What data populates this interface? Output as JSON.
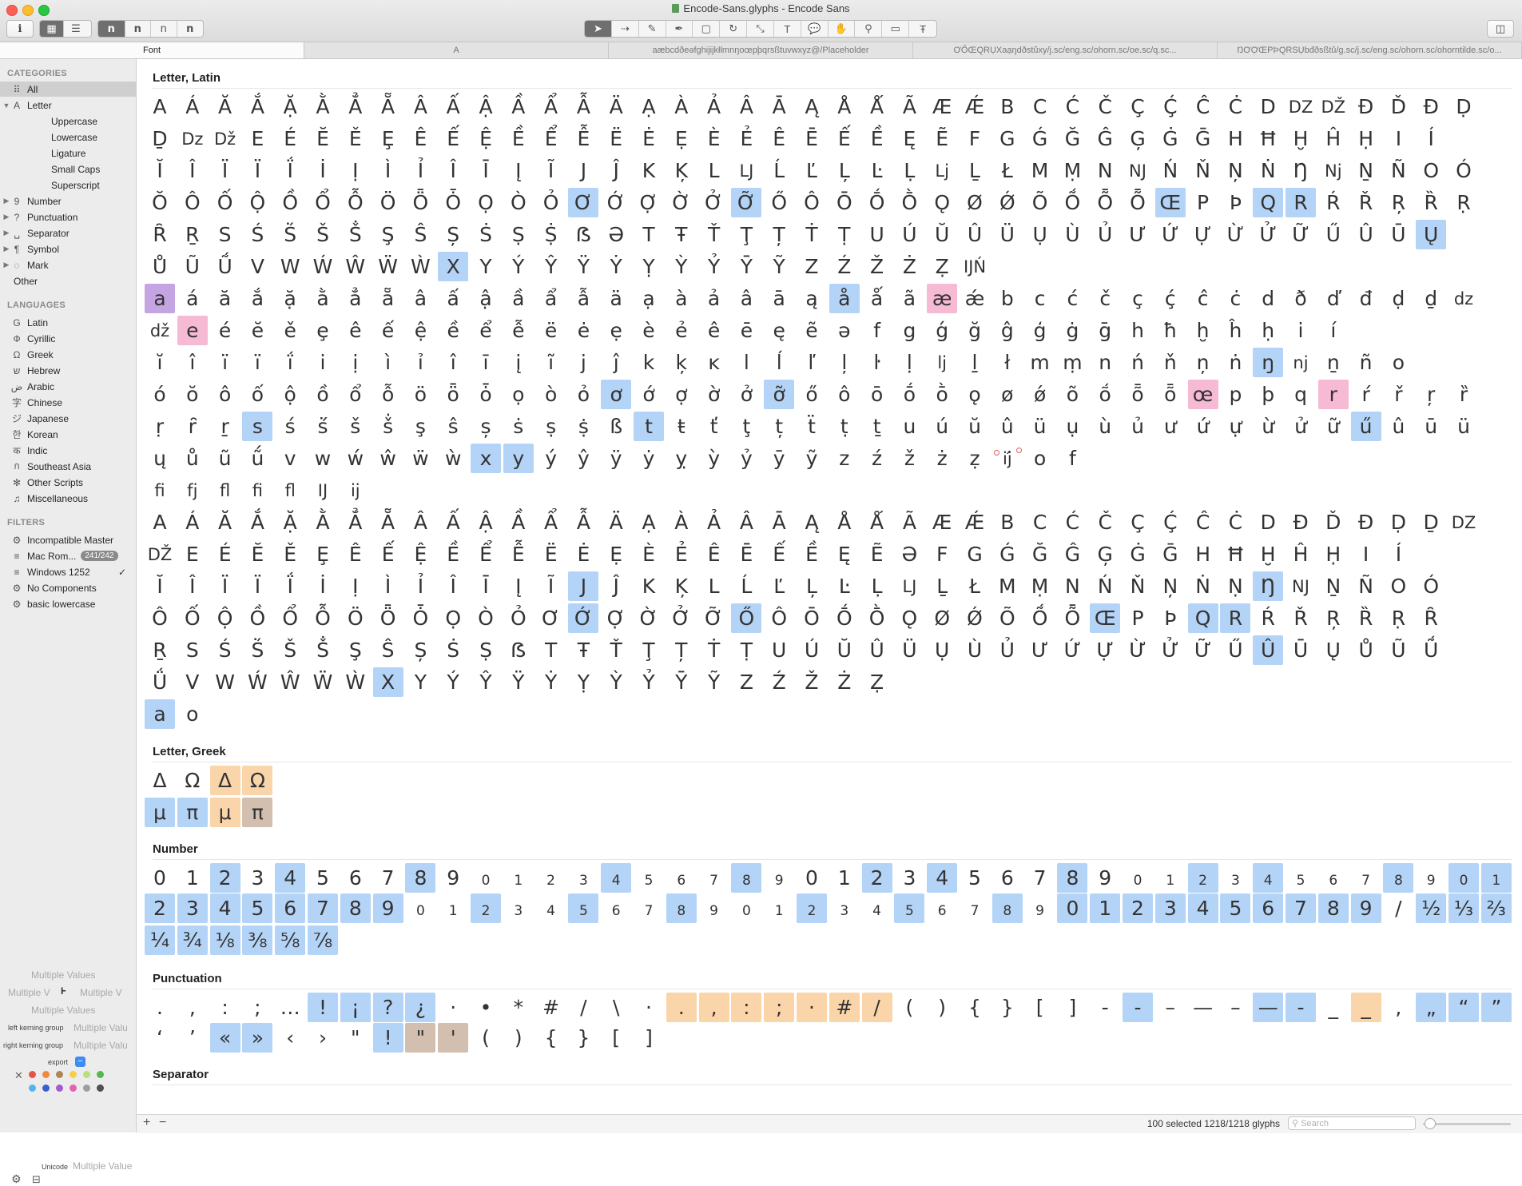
{
  "window": {
    "title": "Encode-Sans.glyphs - Encode Sans"
  },
  "toolbar": {
    "info_icon": "info-icon",
    "view_buttons": [
      "grid-view-icon",
      "list-view-icon"
    ],
    "master_buttons": [
      "n",
      "n",
      "n",
      "n"
    ],
    "tools": [
      "select-tool-icon",
      "select-all-layers-icon",
      "draw-tool-icon",
      "pen-tool-icon",
      "rectangle-tool-icon",
      "rotate-tool-icon",
      "scale-tool-icon",
      "text-tool-icon",
      "annotation-tool-icon",
      "hand-tool-icon",
      "zoom-tool-icon",
      "measurement-tool-icon",
      "text-preview-icon"
    ],
    "sidebar_toggle_icon": "sidebar-toggle-icon"
  },
  "tabs": [
    {
      "label": "Font"
    },
    {
      "label": "A"
    },
    {
      "label": "aæbcdðeəfghijĳkłlmnŋoœpþqrsßtuvwxyz@/Placeholder"
    },
    {
      "label": "ƠŐŒQRỤXaạŋdðstŭxy/j.sc/eng.sc/ohorn.sc/oe.sc/q.sc..."
    },
    {
      "label": "ŊƠỢŒPÞQRSỤbđðsßtŭ/g.sc/j.sc/eng.sc/ohorn.sc/ohorntilde.sc/o..."
    }
  ],
  "sidebar": {
    "categories_header": "CATEGORIES",
    "categories": [
      {
        "label": "All",
        "icon": "grid-icon",
        "glyph": "⠿",
        "selected": true,
        "tri": "",
        "indent": 0
      },
      {
        "label": "Letter",
        "icon": "letter-icon",
        "glyph": "A",
        "tri": "▼",
        "indent": 0
      },
      {
        "label": "Uppercase",
        "indent": 1
      },
      {
        "label": "Lowercase",
        "indent": 1
      },
      {
        "label": "Ligature",
        "indent": 1
      },
      {
        "label": "Small Caps",
        "indent": 1
      },
      {
        "label": "Superscript",
        "indent": 1
      },
      {
        "label": "Number",
        "icon": "number-icon",
        "glyph": "9",
        "tri": "▶",
        "indent": 0
      },
      {
        "label": "Punctuation",
        "icon": "punctuation-icon",
        "glyph": "?",
        "tri": "▶",
        "indent": 0
      },
      {
        "label": "Separator",
        "icon": "separator-icon",
        "glyph": "␣",
        "tri": "▶",
        "indent": 0
      },
      {
        "label": "Symbol",
        "icon": "symbol-icon",
        "glyph": "¶",
        "tri": "▶",
        "indent": 0
      },
      {
        "label": "Mark",
        "icon": "mark-icon",
        "glyph": "◌",
        "tri": "▶",
        "indent": 0
      },
      {
        "label": "Other",
        "indent": -1
      }
    ],
    "languages_header": "LANGUAGES",
    "languages": [
      {
        "label": "Latin",
        "icon": "latin-icon",
        "glyph": "G"
      },
      {
        "label": "Cyrillic",
        "icon": "cyrillic-icon",
        "glyph": "Ф"
      },
      {
        "label": "Greek",
        "icon": "greek-icon",
        "glyph": "Ω"
      },
      {
        "label": "Hebrew",
        "icon": "hebrew-icon",
        "glyph": "ש"
      },
      {
        "label": "Arabic",
        "icon": "arabic-icon",
        "glyph": "ض"
      },
      {
        "label": "Chinese",
        "icon": "chinese-icon",
        "glyph": "字"
      },
      {
        "label": "Japanese",
        "icon": "japanese-icon",
        "glyph": "ジ"
      },
      {
        "label": "Korean",
        "icon": "korean-icon",
        "glyph": "한"
      },
      {
        "label": "Indic",
        "icon": "indic-icon",
        "glyph": "क"
      },
      {
        "label": "Southeast Asia",
        "icon": "southeast-asia-icon",
        "glyph": "ก"
      },
      {
        "label": "Other Scripts",
        "icon": "other-scripts-icon",
        "glyph": "✻"
      },
      {
        "label": "Miscellaneous",
        "icon": "music-note-icon",
        "glyph": "♫"
      }
    ],
    "filters_header": "FILTERS",
    "filters": [
      {
        "label": "Incompatible Master",
        "icon": "gear-icon",
        "glyph": "⚙"
      },
      {
        "label": "Mac Rom...",
        "icon": "list-icon",
        "glyph": "≡",
        "count": "241/242"
      },
      {
        "label": "Windows 1252",
        "icon": "list-icon",
        "glyph": "≡",
        "check": "✓"
      },
      {
        "label": "No Components",
        "icon": "gear-icon",
        "glyph": "⚙"
      },
      {
        "label": "basic lowercase",
        "icon": "gear-icon",
        "glyph": "⚙"
      }
    ],
    "props": {
      "name": "Multiple Values",
      "width_left": "Multiple V",
      "width_right": "Multiple V",
      "width_icon": "width-icon",
      "name2": "Multiple Values",
      "left_kerning_label": "left kerning group",
      "left_kerning_value": "Multiple Valu",
      "right_kerning_label": "right kerning group",
      "right_kerning_value": "Multiple Valu",
      "export_label": "export",
      "unicode_label": "Unicode",
      "unicode_value": "Multiple Value",
      "color_labels": [
        "#e5534b",
        "#f0883e",
        "#b08558",
        "#f2d04a",
        "#b8e07a",
        "#54b94c",
        "#55b0f0",
        "#3c5fcf",
        "#a45ad6",
        "#e761b3",
        "#9e9e9e",
        "#505050"
      ]
    }
  },
  "sections": [
    {
      "title": "Letter, Latin"
    },
    {
      "title": "Letter, Greek"
    },
    {
      "title": "Number"
    },
    {
      "title": "Punctuation"
    },
    {
      "title": "Separator"
    }
  ],
  "glyph_rows": {
    "latin": [
      [
        "A",
        "Á",
        "Ă",
        "Ắ",
        "Ặ",
        "Ằ",
        "Ẳ",
        "Ẵ",
        "Â",
        "Ấ",
        "Ậ",
        "Ầ",
        "Ẩ",
        "Ẫ",
        "Ä",
        "Ạ",
        "À",
        "Ả",
        "Â",
        "Ā",
        "Ą",
        "Å",
        "Ǻ",
        "Ã",
        "Æ",
        "Ǽ",
        "B",
        "C",
        "Ć",
        "Č",
        "Ç",
        "Ḉ",
        "Ĉ",
        "Ċ",
        "D",
        "DZ",
        "DŽ",
        "Ð",
        "Ď",
        "Đ",
        "Ḍ"
      ],
      [
        "Ḏ",
        "Dz",
        "Dž",
        "E",
        "É",
        "Ĕ",
        "Ě",
        "Ȩ",
        "Ê",
        "Ế",
        "Ệ",
        "Ề",
        "Ể",
        "Ễ",
        "Ë",
        "Ė",
        "Ẹ",
        "È",
        "Ẻ",
        "Ê",
        "Ē",
        "Ế",
        "Ề",
        "Ę",
        "Ẽ",
        "F",
        "G",
        "Ǵ",
        "Ğ",
        "Ĝ",
        "Ģ",
        "Ġ",
        "Ḡ",
        "H",
        "Ħ",
        "Ḫ",
        "Ĥ",
        "Ḥ",
        "I",
        "Í"
      ],
      [
        "Ĭ",
        "Î",
        "Ï",
        "Ï",
        "Ḯ",
        "İ",
        "Ị",
        "Ì",
        "Ỉ",
        "Î",
        "Ī",
        "Į",
        "Ĩ",
        "J",
        "Ĵ",
        "K",
        "Ķ",
        "L",
        "LJ",
        "Ĺ",
        "Ľ",
        "Ļ",
        "Ŀ",
        "Ḷ",
        "Lj",
        "Ḻ",
        "Ł",
        "M",
        "Ṃ",
        "N",
        "NJ",
        "Ń",
        "Ň",
        "Ņ",
        "Ṅ",
        "Ŋ",
        "Nj",
        "Ṉ",
        "Ñ",
        "O",
        "Ó"
      ],
      [
        "Ŏ",
        "Ô",
        "Ố",
        "Ộ",
        "Ồ",
        "Ổ",
        "Ỗ",
        "Ö",
        "Ȫ",
        "Ȱ",
        "Ọ",
        "Ò",
        "Ỏ",
        "Ơ",
        "Ớ",
        "Ợ",
        "Ờ",
        "Ở",
        "Ỡ",
        "Ő",
        "Ô",
        "Ō",
        "Ṓ",
        "Ṑ",
        "Ǫ",
        "Ø",
        "Ǿ",
        "Õ",
        "Ṍ",
        "Ȭ",
        "Ȭ",
        "Œ",
        "P",
        "Þ",
        "Q",
        "R",
        "Ŕ",
        "Ř",
        "Ŗ",
        "Ȑ",
        "Ṛ"
      ],
      [
        "Ȓ",
        "Ṟ",
        "S",
        "Ś",
        "Ṥ",
        "Š",
        "Ṧ",
        "Ş",
        "Ŝ",
        "Ș",
        "Ṡ",
        "Ṣ",
        "Ṩ",
        "ẞ",
        "Ə",
        "T",
        "Ŧ",
        "Ť",
        "Ţ",
        "Ț",
        "Ṫ",
        "Ṭ",
        "U",
        "Ú",
        "Ŭ",
        "Û",
        "Ü",
        "Ụ",
        "Ù",
        "Ủ",
        "Ư",
        "Ứ",
        "Ự",
        "Ừ",
        "Ử",
        "Ữ",
        "Ű",
        "Û",
        "Ū",
        "Ų"
      ],
      [
        "Ů",
        "Ũ",
        "Ṹ",
        "V",
        "W",
        "Ẃ",
        "Ŵ",
        "Ẅ",
        "Ẁ",
        "X",
        "Y",
        "Ý",
        "Ŷ",
        "Ÿ",
        "Ẏ",
        "Ỵ",
        "Ỳ",
        "Ỷ",
        "Ȳ",
        "Ỹ",
        "Z",
        "Ź",
        "Ž",
        "Ż",
        "Ẓ",
        "ĲŃ"
      ],
      [
        "a",
        "á",
        "ă",
        "ắ",
        "ặ",
        "ằ",
        "ẳ",
        "ẵ",
        "â",
        "ấ",
        "ậ",
        "ầ",
        "ẩ",
        "ẫ",
        "ä",
        "ạ",
        "à",
        "ả",
        "â",
        "ā",
        "ą",
        "å",
        "ǻ",
        "ã",
        "æ",
        "ǽ",
        "b",
        "c",
        "ć",
        "č",
        "ç",
        "ḉ",
        "ĉ",
        "ċ",
        "d",
        "ð",
        "ď",
        "đ",
        "ḍ",
        "ḏ",
        "dz"
      ],
      [
        "dž",
        "e",
        "é",
        "ĕ",
        "ě",
        "ȩ",
        "ê",
        "ế",
        "ệ",
        "ề",
        "ể",
        "ễ",
        "ë",
        "ė",
        "ẹ",
        "è",
        "ẻ",
        "ê",
        "ē",
        "ę",
        "ẽ",
        "ə",
        "f",
        "g",
        "ǵ",
        "ğ",
        "ĝ",
        "ģ",
        "ġ",
        "ḡ",
        "h",
        "ħ",
        "ḫ",
        "ĥ",
        "ḥ",
        "i",
        "í"
      ],
      [
        "ĭ",
        "î",
        "ï",
        "ï",
        "ḯ",
        "i",
        "ị",
        "ì",
        "ỉ",
        "î",
        "ī",
        "į",
        "ĩ",
        "j",
        "ĵ",
        "k",
        "ķ",
        "ĸ",
        "l",
        "ĺ",
        "ľ",
        "ļ",
        "ŀ",
        "ḷ",
        "lj",
        "ḻ",
        "ł",
        "m",
        "ṃ",
        "n",
        "ń",
        "ň",
        "ņ",
        "ṅ",
        "ŋ",
        "nj",
        "ṉ",
        "ñ",
        "o"
      ],
      [
        "ó",
        "ŏ",
        "ô",
        "ố",
        "ộ",
        "ồ",
        "ổ",
        "ỗ",
        "ö",
        "ȫ",
        "ȱ",
        "ọ",
        "ò",
        "ỏ",
        "ơ",
        "ớ",
        "ợ",
        "ờ",
        "ở",
        "ỡ",
        "ő",
        "ô",
        "ō",
        "ṓ",
        "ṑ",
        "ǫ",
        "ø",
        "ǿ",
        "õ",
        "ṍ",
        "ȭ",
        "ȭ",
        "œ",
        "p",
        "þ",
        "q",
        "r",
        "ŕ",
        "ř",
        "ŗ",
        "ȑ"
      ],
      [
        "ṛ",
        "ȓ",
        "ṟ",
        "s",
        "ś",
        "ṥ",
        "š",
        "ṧ",
        "ş",
        "ŝ",
        "ș",
        "ṡ",
        "ṣ",
        "ṩ",
        "ß",
        "t",
        "ŧ",
        "ť",
        "ţ",
        "ț",
        "ẗ",
        "ṭ",
        "ṯ",
        "u",
        "ú",
        "ŭ",
        "û",
        "ü",
        "ụ",
        "ù",
        "ủ",
        "ư",
        "ứ",
        "ự",
        "ừ",
        "ử",
        "ữ",
        "ű",
        "û",
        "ū",
        "ü"
      ],
      [
        "ų",
        "ů",
        "ũ",
        "ṹ",
        "v",
        "w",
        "ẃ",
        "ŵ",
        "ẅ",
        "ẁ",
        "x",
        "y",
        "ý",
        "ŷ",
        "ÿ",
        "ẏ",
        "ỵ",
        "ỳ",
        "ỷ",
        "ȳ",
        "ỹ",
        "z",
        "ź",
        "ž",
        "ż",
        "ẓ",
        "ĳ́",
        "o",
        "f"
      ],
      [
        "fi",
        "fj",
        "fl",
        "fi",
        "fl",
        "IJ",
        "ij"
      ],
      [
        "A",
        "Á",
        "Ă",
        "Ắ",
        "Ặ",
        "Ằ",
        "Ẳ",
        "Ẵ",
        "Â",
        "Ấ",
        "Ậ",
        "Ầ",
        "Ẩ",
        "Ẫ",
        "Ä",
        "Ạ",
        "À",
        "Ả",
        "Â",
        "Ā",
        "Ą",
        "Å",
        "Ǻ",
        "Ã",
        "Æ",
        "Ǽ",
        "B",
        "C",
        "Ć",
        "Č",
        "Ç",
        "Ḉ",
        "Ĉ",
        "Ċ",
        "D",
        "Ð",
        "Ď",
        "Đ",
        "Ḍ",
        "Ḏ",
        "DZ"
      ],
      [
        "DŽ",
        "E",
        "É",
        "Ĕ",
        "Ě",
        "Ȩ",
        "Ê",
        "Ế",
        "Ệ",
        "Ề",
        "Ể",
        "Ễ",
        "Ë",
        "Ė",
        "Ẹ",
        "È",
        "Ẻ",
        "Ê",
        "Ē",
        "Ế",
        "Ề",
        "Ę",
        "Ẽ",
        "Ə",
        "F",
        "G",
        "Ǵ",
        "Ğ",
        "Ĝ",
        "Ģ",
        "Ġ",
        "Ḡ",
        "H",
        "Ħ",
        "Ḫ",
        "Ĥ",
        "Ḥ",
        "I",
        "Í"
      ],
      [
        "Ĭ",
        "Î",
        "Ï",
        "Ï",
        "Ḯ",
        "İ",
        "Ị",
        "Ì",
        "Ỉ",
        "Î",
        "Ī",
        "Į",
        "Ĩ",
        "J",
        "Ĵ",
        "K",
        "Ķ",
        "L",
        "Ĺ",
        "Ľ",
        "Ļ",
        "Ŀ",
        "Ḷ",
        "LJ",
        "Ḻ",
        "Ł",
        "M",
        "Ṃ",
        "N",
        "Ń",
        "Ň",
        "Ņ",
        "Ṅ",
        "Ṇ",
        "Ŋ",
        "NJ",
        "Ṉ",
        "Ñ",
        "O",
        "Ó"
      ],
      [
        "Ô",
        "Ố",
        "Ộ",
        "Ồ",
        "Ổ",
        "Ỗ",
        "Ö",
        "Ȫ",
        "Ȱ",
        "Ọ",
        "Ò",
        "Ỏ",
        "Ơ",
        "Ớ",
        "Ợ",
        "Ờ",
        "Ở",
        "Ỡ",
        "Ő",
        "Ô",
        "Ō",
        "Ṓ",
        "Ṑ",
        "Ǫ",
        "Ø",
        "Ǿ",
        "Õ",
        "Ṍ",
        "Ȭ",
        "Œ",
        "P",
        "Þ",
        "Q",
        "R",
        "Ŕ",
        "Ř",
        "Ŗ",
        "Ȑ",
        "Ṛ",
        "Ȓ"
      ],
      [
        "Ṟ",
        "S",
        "Ś",
        "Ṥ",
        "Š",
        "Ṧ",
        "Ş",
        "Ŝ",
        "Ș",
        "Ṡ",
        "Ṣ",
        "ẞ",
        "T",
        "Ŧ",
        "Ť",
        "Ţ",
        "Ț",
        "Ṫ",
        "Ṭ",
        "U",
        "Ú",
        "Ŭ",
        "Û",
        "Ü",
        "Ụ",
        "Ù",
        "Ủ",
        "Ư",
        "Ứ",
        "Ự",
        "Ừ",
        "Ử",
        "Ữ",
        "Ű",
        "Û",
        "Ū",
        "Ų",
        "Ů",
        "Ũ",
        "Ṹ"
      ],
      [
        "Ǘ",
        "V",
        "W",
        "Ẃ",
        "Ŵ",
        "Ẅ",
        "Ẁ",
        "X",
        "Y",
        "Ý",
        "Ŷ",
        "Ÿ",
        "Ẏ",
        "Ỵ",
        "Ỳ",
        "Ỷ",
        "Ȳ",
        "Ỹ",
        "Z",
        "Ź",
        "Ž",
        "Ż",
        "Ẓ"
      ],
      [
        "a",
        "o"
      ]
    ],
    "greek": [
      [
        "Δ",
        "Ω",
        "Δ",
        "Ω"
      ],
      [
        "μ",
        "π",
        "μ",
        "π"
      ]
    ],
    "number": [
      [
        "0",
        "1",
        "2",
        "3",
        "4",
        "5",
        "6",
        "7",
        "8",
        "9",
        "0",
        "1",
        "2",
        "3",
        "4",
        "5",
        "6",
        "7",
        "8",
        "9",
        "0",
        "1",
        "2",
        "3",
        "4",
        "5",
        "6",
        "7",
        "8",
        "9",
        "0",
        "1",
        "2",
        "3",
        "4",
        "5",
        "6",
        "7",
        "8",
        "9",
        "0",
        "1"
      ],
      [
        "2",
        "3",
        "4",
        "5",
        "6",
        "7",
        "8",
        "9",
        "0",
        "1",
        "2",
        "3",
        "4",
        "5",
        "6",
        "7",
        "8",
        "9",
        "0",
        "1",
        "2",
        "3",
        "4",
        "5",
        "6",
        "7",
        "8",
        "9",
        "0",
        "1",
        "2",
        "3",
        "4",
        "5",
        "6",
        "7",
        "8",
        "9",
        "/",
        "½",
        "⅓",
        "⅔"
      ],
      [
        "¼",
        "¾",
        "⅛",
        "⅜",
        "⅝",
        "⅞"
      ]
    ],
    "punctuation": [
      [
        ".",
        ",",
        ":",
        ";",
        "…",
        "!",
        "¡",
        "?",
        "¿",
        "·",
        "•",
        "*",
        "#",
        "/",
        "\\",
        "·",
        ".",
        ",",
        ":",
        ";",
        "·",
        "#",
        "/",
        "(",
        ")",
        "{",
        "}",
        "[",
        "]",
        "-",
        "-",
        "–",
        "—",
        "–",
        "—",
        "-",
        "_",
        "_",
        ",",
        "„",
        "“",
        "”"
      ],
      [
        "‘",
        "’",
        "«",
        "»",
        "‹",
        "›",
        "\"",
        "!",
        "\"",
        "'",
        "(",
        ")",
        "{",
        "}",
        "[",
        "]"
      ]
    ]
  },
  "highlights": {
    "colors": {
      "blue": "#b4d4f7",
      "pink": "#f7bad5",
      "purple": "#c5a5e1",
      "orange": "#fad5aa",
      "brown": "#d2bfaf"
    }
  },
  "status": {
    "text": "100 selected 1218/1218 glyphs",
    "search_placeholder": "Search",
    "add_icon": "plus-icon",
    "remove_icon": "minus-icon",
    "settings_icon": "gear-icon",
    "filter_icon": "filter-icon"
  }
}
